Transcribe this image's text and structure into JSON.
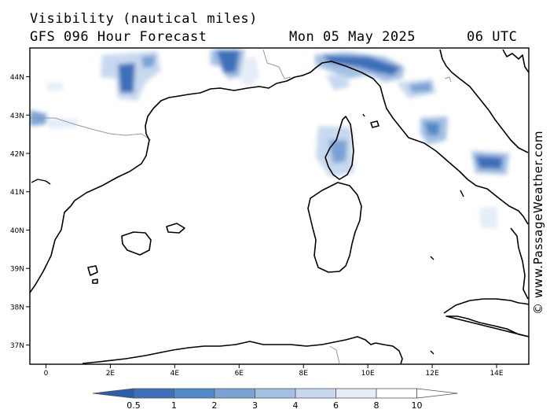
{
  "header": {
    "title": "Visibility (nautical miles)",
    "subtitle": "GFS 096 Hour Forecast",
    "date": "Mon 05 May 2025",
    "time": "06 UTC"
  },
  "credit": "© www.PassageWeather.com",
  "map": {
    "lon_range": [
      -0.5,
      15
    ],
    "lat_range": [
      36.5,
      44.75
    ],
    "lat_labels": [
      "44N",
      "43N",
      "42N",
      "41N",
      "40N",
      "39N",
      "38N",
      "37N"
    ],
    "lon_labels": [
      "0",
      "2E",
      "4E",
      "6E",
      "8E",
      "10E",
      "12E",
      "14E"
    ],
    "land_outline_color": "#000000",
    "border_color": "#9a9a9a"
  },
  "legend": {
    "labels": [
      "0.5",
      "1",
      "2",
      "3",
      "4",
      "6",
      "8",
      "10"
    ],
    "colors": [
      "#2b5ea8",
      "#3d70b8",
      "#5288c6",
      "#7aa3d4",
      "#a4c0e3",
      "#c8d9ef",
      "#e4edf8",
      "#ffffff"
    ]
  }
}
